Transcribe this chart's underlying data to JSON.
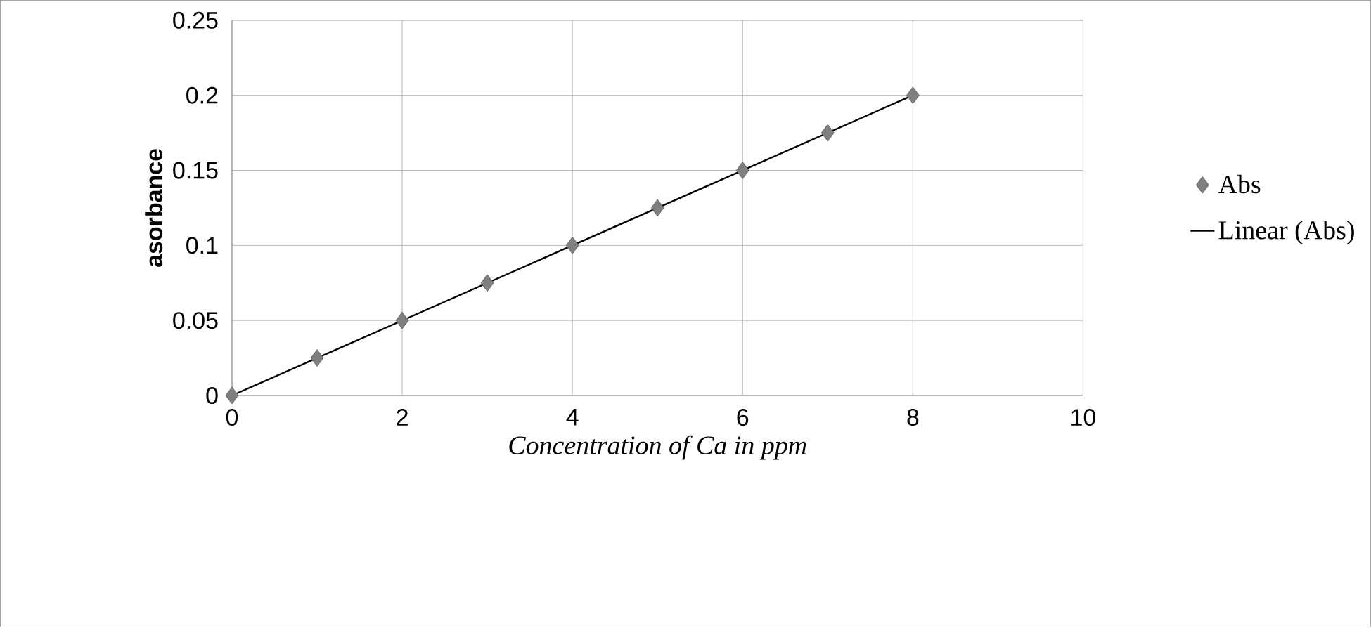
{
  "chart_data": {
    "type": "scatter",
    "xlabel": "Concentration of Ca in ppm",
    "ylabel": "asorbance",
    "x": [
      0,
      1,
      2,
      3,
      4,
      5,
      6,
      7,
      8
    ],
    "series": [
      {
        "name": "Abs",
        "color": "#7f7f7f",
        "marker": "diamond",
        "values": [
          0,
          0.025,
          0.05,
          0.075,
          0.1,
          0.125,
          0.15,
          0.175,
          0.2
        ]
      },
      {
        "name": "Linear (Abs)",
        "type": "line",
        "color": "#000000",
        "marker": "none",
        "x": [
          0,
          8
        ],
        "values": [
          0,
          0.2
        ]
      }
    ],
    "xlim": [
      0,
      10
    ],
    "xticks": [
      0,
      2,
      4,
      6,
      8,
      10
    ],
    "ylim": [
      0,
      0.25
    ],
    "yticks": [
      0,
      0.05,
      0.1,
      0.15,
      0.2,
      0.25
    ],
    "grid": true,
    "legend": "right"
  }
}
